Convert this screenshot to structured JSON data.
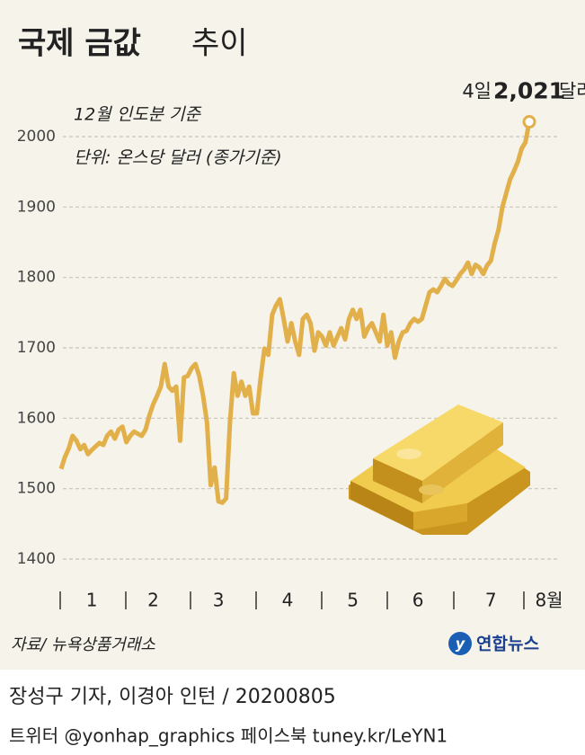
{
  "chart_data": {
    "type": "line",
    "title": {
      "main": "국제 금값",
      "rest": "추이"
    },
    "subtitle": [
      "12월 인도분 기준",
      "단위: 온스당 달러 (종가기준)"
    ],
    "categories": [
      null,
      null,
      null,
      null,
      null,
      null,
      null,
      null,
      "1",
      null,
      null,
      null,
      null,
      null,
      null,
      null,
      null,
      null,
      null,
      null,
      null,
      null,
      null,
      null,
      "2",
      null,
      null,
      null,
      null,
      null,
      null,
      null,
      null,
      null,
      null,
      null,
      null,
      null,
      null,
      null,
      null,
      "3",
      null,
      null,
      null,
      null,
      null,
      null,
      null,
      null,
      null,
      null,
      null,
      null,
      null,
      null,
      null,
      null,
      null,
      "4",
      null,
      null,
      null,
      null,
      null,
      null,
      null,
      null,
      null,
      null,
      null,
      null,
      null,
      null,
      null,
      null,
      "5",
      null,
      null,
      null,
      null,
      null,
      null,
      null,
      null,
      null,
      null,
      null,
      null,
      null,
      null,
      null,
      null,
      "6",
      null,
      null,
      null,
      null,
      null,
      null,
      null,
      null,
      null,
      null,
      null,
      null,
      null,
      null,
      null,
      null,
      null,
      null,
      "7",
      null,
      null,
      null,
      null,
      null,
      null,
      null,
      null,
      null,
      "8월"
    ],
    "series": [
      {
        "color": "#e2b04a",
        "values": [
          1528,
          1545,
          1557,
          1575,
          1568,
          1556,
          1562,
          1549,
          1555,
          1560,
          1565,
          1562,
          1575,
          1581,
          1571,
          1584,
          1588,
          1566,
          1575,
          1581,
          1578,
          1575,
          1584,
          1604,
          1620,
          1632,
          1645,
          1677,
          1645,
          1639,
          1645,
          1568,
          1658,
          1660,
          1671,
          1677,
          1660,
          1632,
          1594,
          1505,
          1530,
          1482,
          1480,
          1486,
          1594,
          1664,
          1632,
          1652,
          1632,
          1645,
          1607,
          1607,
          1658,
          1699,
          1690,
          1747,
          1760,
          1769,
          1741,
          1709,
          1735,
          1709,
          1690,
          1741,
          1747,
          1735,
          1696,
          1722,
          1716,
          1703,
          1722,
          1703,
          1716,
          1728,
          1712,
          1741,
          1754,
          1741,
          1754,
          1716,
          1728,
          1735,
          1722,
          1709,
          1747,
          1703,
          1722,
          1686,
          1709,
          1722,
          1724,
          1735,
          1741,
          1737,
          1741,
          1760,
          1779,
          1783,
          1779,
          1788,
          1798,
          1791,
          1788,
          1796,
          1805,
          1811,
          1821,
          1805,
          1818,
          1814,
          1805,
          1817,
          1824,
          1849,
          1868,
          1900,
          1920,
          1939,
          1951,
          1964,
          1983,
          1992,
          2021
        ],
        "value_labels": [
          null,
          null,
          null,
          null,
          null,
          null,
          null,
          null,
          null,
          null,
          null,
          null,
          null,
          null,
          null,
          null,
          null,
          null,
          null,
          null,
          null,
          null,
          null,
          null,
          null,
          null,
          null,
          null,
          null,
          null,
          null,
          null,
          null,
          null,
          null,
          null,
          null,
          null,
          null,
          null,
          null,
          null,
          null,
          null,
          null,
          null,
          null,
          null,
          null,
          null,
          null,
          null,
          null,
          null,
          null,
          null,
          null,
          null,
          null,
          null,
          null,
          null,
          null,
          null,
          null,
          null,
          null,
          null,
          null,
          null,
          null,
          null,
          null,
          null,
          null,
          null,
          null,
          null,
          null,
          null,
          null,
          null,
          null,
          null,
          null,
          null,
          null,
          null,
          null,
          null,
          null,
          null,
          null,
          null,
          null,
          null,
          null,
          null,
          null,
          null,
          null,
          null,
          null,
          null,
          null,
          null,
          null,
          null,
          null,
          null,
          null,
          null,
          null,
          null,
          null,
          null,
          null,
          null,
          null,
          null,
          null,
          null,
          "2,021"
        ]
      }
    ],
    "annotation": {
      "day": "4일",
      "unit": "달러"
    },
    "ylim": [
      1400,
      2000
    ],
    "yticks": [
      1400,
      1500,
      1600,
      1700,
      1800,
      1900,
      2000
    ],
    "grid": true,
    "source": "자료/ 뉴욕상품거래소",
    "logo": "연합뉴스",
    "credit": "장성구 기자, 이경아 인턴 / 20200805",
    "social": "트위터 @yonhap_graphics  페이스북 tuney.kr/LeYN1"
  }
}
